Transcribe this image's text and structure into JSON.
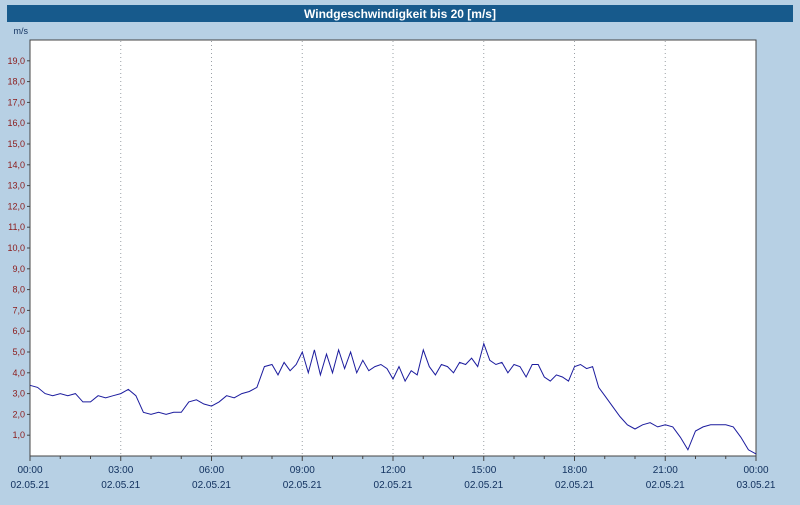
{
  "title": "Windgeschwindigkeit bis 20 [m/s]",
  "colors": {
    "background": "#b7d0e4",
    "title_bar": "#175a8c",
    "title_text": "#ffffff",
    "plot_background": "#ffffff",
    "plot_border": "#444444",
    "line": "#1c1c9e",
    "y_labels": "#8b1a1a",
    "x_labels": "#10305e",
    "grid": "#9aa0a6"
  },
  "chart_data": {
    "type": "line",
    "title": "Windgeschwindigkeit bis 20 [m/s]",
    "ylabel": "m/s",
    "xlabel": "",
    "grid": "vertical-dotted",
    "legend": "none",
    "y_axis": {
      "unit": "m/s",
      "min": 0,
      "max": 20,
      "step": 1,
      "tick_label_format": "german-decimal-comma"
    },
    "x_axis": {
      "range_hours": [
        0,
        24
      ],
      "minor_tick_hours": 1,
      "ticks": [
        {
          "hour": 0,
          "time": "00:00",
          "date": "02.05.21"
        },
        {
          "hour": 3,
          "time": "03:00",
          "date": "02.05.21"
        },
        {
          "hour": 6,
          "time": "06:00",
          "date": "02.05.21"
        },
        {
          "hour": 9,
          "time": "09:00",
          "date": "02.05.21"
        },
        {
          "hour": 12,
          "time": "12:00",
          "date": "02.05.21"
        },
        {
          "hour": 15,
          "time": "15:00",
          "date": "02.05.21"
        },
        {
          "hour": 18,
          "time": "18:00",
          "date": "02.05.21"
        },
        {
          "hour": 21,
          "time": "21:00",
          "date": "02.05.21"
        },
        {
          "hour": 24,
          "time": "00:00",
          "date": "03.05.21"
        }
      ]
    },
    "series_name": "Windgeschwindigkeit",
    "points": [
      [
        0,
        3.4
      ],
      [
        0.25,
        3.3
      ],
      [
        0.5,
        3.0
      ],
      [
        0.75,
        2.9
      ],
      [
        1,
        3.0
      ],
      [
        1.25,
        2.9
      ],
      [
        1.5,
        3.0
      ],
      [
        1.75,
        2.6
      ],
      [
        2,
        2.6
      ],
      [
        2.25,
        2.9
      ],
      [
        2.5,
        2.8
      ],
      [
        2.75,
        2.9
      ],
      [
        3,
        3.0
      ],
      [
        3.25,
        3.2
      ],
      [
        3.5,
        2.9
      ],
      [
        3.75,
        2.1
      ],
      [
        4,
        2.0
      ],
      [
        4.25,
        2.1
      ],
      [
        4.5,
        2.0
      ],
      [
        4.75,
        2.1
      ],
      [
        5,
        2.1
      ],
      [
        5.25,
        2.6
      ],
      [
        5.5,
        2.7
      ],
      [
        5.75,
        2.5
      ],
      [
        6,
        2.4
      ],
      [
        6.25,
        2.6
      ],
      [
        6.5,
        2.9
      ],
      [
        6.75,
        2.8
      ],
      [
        7,
        3.0
      ],
      [
        7.25,
        3.1
      ],
      [
        7.5,
        3.3
      ],
      [
        7.75,
        4.3
      ],
      [
        8,
        4.4
      ],
      [
        8.2,
        3.9
      ],
      [
        8.4,
        4.5
      ],
      [
        8.6,
        4.1
      ],
      [
        8.8,
        4.4
      ],
      [
        9,
        5.0
      ],
      [
        9.2,
        4.0
      ],
      [
        9.4,
        5.1
      ],
      [
        9.6,
        3.9
      ],
      [
        9.8,
        4.9
      ],
      [
        10,
        4.0
      ],
      [
        10.2,
        5.1
      ],
      [
        10.4,
        4.2
      ],
      [
        10.6,
        5.0
      ],
      [
        10.8,
        4.0
      ],
      [
        11,
        4.6
      ],
      [
        11.2,
        4.1
      ],
      [
        11.4,
        4.3
      ],
      [
        11.6,
        4.4
      ],
      [
        11.8,
        4.2
      ],
      [
        12,
        3.7
      ],
      [
        12.2,
        4.3
      ],
      [
        12.4,
        3.6
      ],
      [
        12.6,
        4.1
      ],
      [
        12.8,
        3.9
      ],
      [
        13,
        5.1
      ],
      [
        13.2,
        4.3
      ],
      [
        13.4,
        3.9
      ],
      [
        13.6,
        4.4
      ],
      [
        13.8,
        4.3
      ],
      [
        14,
        4.0
      ],
      [
        14.2,
        4.5
      ],
      [
        14.4,
        4.4
      ],
      [
        14.6,
        4.7
      ],
      [
        14.8,
        4.3
      ],
      [
        15,
        5.4
      ],
      [
        15.2,
        4.6
      ],
      [
        15.4,
        4.4
      ],
      [
        15.6,
        4.5
      ],
      [
        15.8,
        4.0
      ],
      [
        16,
        4.4
      ],
      [
        16.2,
        4.3
      ],
      [
        16.4,
        3.8
      ],
      [
        16.6,
        4.4
      ],
      [
        16.8,
        4.4
      ],
      [
        17,
        3.8
      ],
      [
        17.2,
        3.6
      ],
      [
        17.4,
        3.9
      ],
      [
        17.6,
        3.8
      ],
      [
        17.8,
        3.6
      ],
      [
        18,
        4.3
      ],
      [
        18.2,
        4.4
      ],
      [
        18.4,
        4.2
      ],
      [
        18.6,
        4.3
      ],
      [
        18.8,
        3.3
      ],
      [
        19,
        2.9
      ],
      [
        19.25,
        2.4
      ],
      [
        19.5,
        1.9
      ],
      [
        19.75,
        1.5
      ],
      [
        20,
        1.3
      ],
      [
        20.25,
        1.5
      ],
      [
        20.5,
        1.6
      ],
      [
        20.75,
        1.4
      ],
      [
        21,
        1.5
      ],
      [
        21.25,
        1.4
      ],
      [
        21.5,
        0.9
      ],
      [
        21.75,
        0.3
      ],
      [
        22,
        1.2
      ],
      [
        22.25,
        1.4
      ],
      [
        22.5,
        1.5
      ],
      [
        22.75,
        1.5
      ],
      [
        23,
        1.5
      ],
      [
        23.25,
        1.4
      ],
      [
        23.5,
        0.9
      ],
      [
        23.75,
        0.3
      ],
      [
        24,
        0.1
      ]
    ]
  }
}
